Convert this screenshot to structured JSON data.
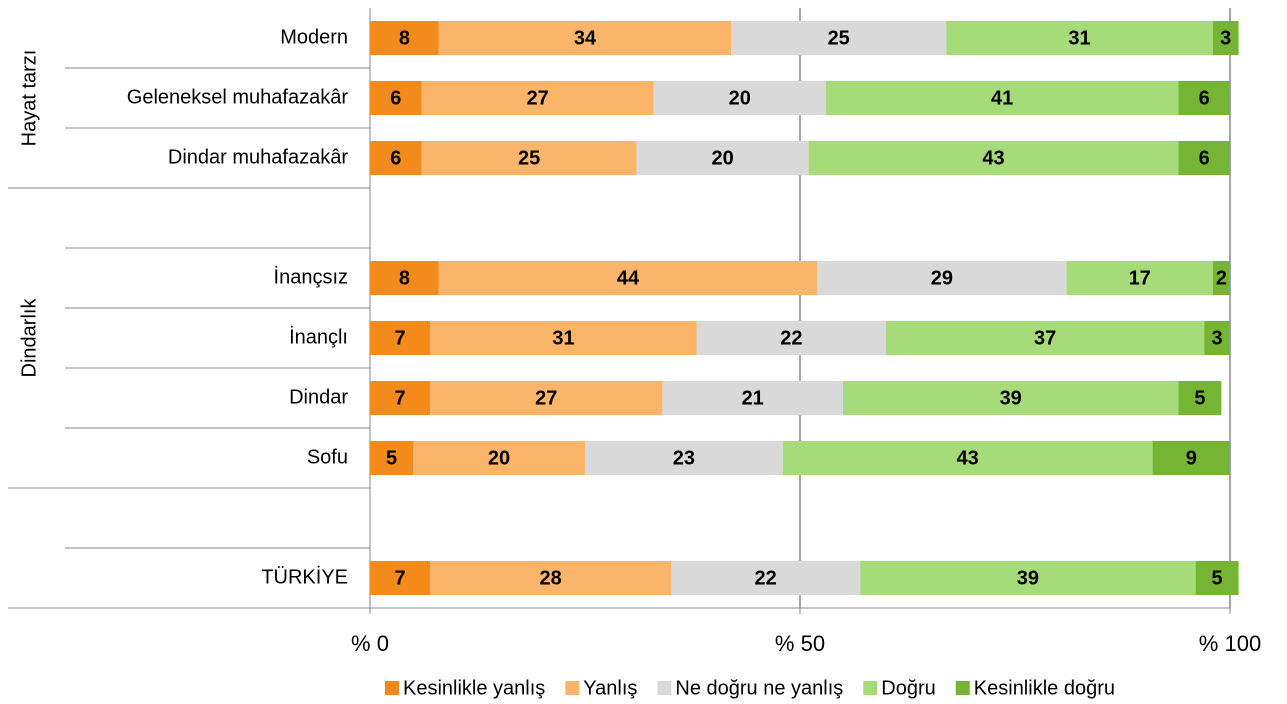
{
  "chart_data": {
    "type": "stacked_bar_horizontal",
    "categories": [
      "Modern",
      "Geleneksel muhafazakâr",
      "Dindar muhafazakâr",
      null,
      "İnançsız",
      "İnançlı",
      "Dindar",
      "Sofu",
      null,
      "TÜRKİYE"
    ],
    "groups": [
      "Hayat tarzı",
      "Dindarlık"
    ],
    "series": [
      {
        "name": "Kesinlikle yanlış",
        "color": "#f28a1c",
        "values": [
          8,
          6,
          6,
          null,
          8,
          7,
          7,
          5,
          null,
          7
        ]
      },
      {
        "name": "Yanlış",
        "color": "#fab56a",
        "values": [
          34,
          27,
          25,
          null,
          44,
          31,
          27,
          20,
          null,
          28
        ]
      },
      {
        "name": "Ne doğru ne yanlış",
        "color": "#d9d9d9",
        "values": [
          25,
          20,
          20,
          null,
          29,
          22,
          21,
          23,
          null,
          22
        ]
      },
      {
        "name": "Doğru",
        "color": "#a6db7a",
        "values": [
          31,
          41,
          43,
          null,
          17,
          37,
          39,
          43,
          null,
          39
        ]
      },
      {
        "name": "Kesinlikle doğru",
        "color": "#76b534",
        "values": [
          3,
          6,
          6,
          null,
          2,
          3,
          5,
          9,
          null,
          5
        ]
      }
    ],
    "xlim": [
      0,
      100
    ],
    "xticks": [
      {
        "value": 0,
        "label": "% 0"
      },
      {
        "value": 50,
        "label": "% 50"
      },
      {
        "value": 100,
        "label": "% 100"
      }
    ],
    "grid": true,
    "legend": "bottom"
  }
}
